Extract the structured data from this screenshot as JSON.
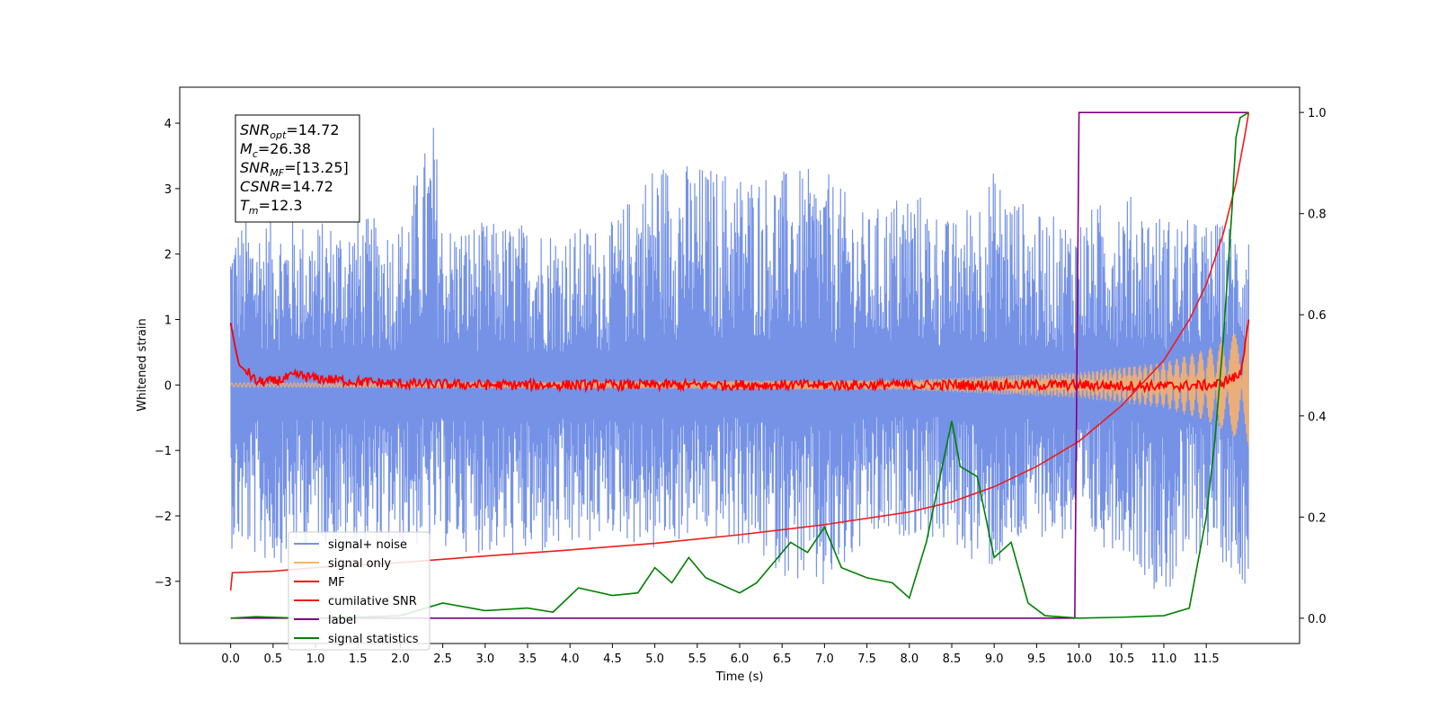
{
  "chart_data": {
    "type": "line",
    "xlabel": "Time (s)",
    "ylabel": "Whitened strain",
    "xlim": [
      -0.6,
      12.6
    ],
    "ylim": [
      -3.95,
      4.55
    ],
    "y2lim": [
      -0.05,
      1.05
    ],
    "x_ticks": [
      0.0,
      0.5,
      1.0,
      1.5,
      2.0,
      2.5,
      3.0,
      3.5,
      4.0,
      4.5,
      5.0,
      5.5,
      6.0,
      6.5,
      7.0,
      7.5,
      8.0,
      8.5,
      9.0,
      9.5,
      10.0,
      10.5,
      11.0,
      11.5
    ],
    "x_tick_labels": [
      "0.0",
      "0.5",
      "1.0",
      "1.5",
      "2.0",
      "2.5",
      "3.0",
      "3.5",
      "4.0",
      "4.5",
      "5.0",
      "5.5",
      "6.0",
      "6.5",
      "7.0",
      "7.5",
      "8.0",
      "8.5",
      "9.0",
      "9.5",
      "10.0",
      "10.5",
      "11.0",
      "11.5"
    ],
    "y_ticks": [
      -3,
      -2,
      -1,
      0,
      1,
      2,
      3,
      4
    ],
    "y_tick_labels": [
      "−3",
      "−2",
      "−1",
      "0",
      "1",
      "2",
      "3",
      "4"
    ],
    "y2_ticks": [
      0.0,
      0.2,
      0.4,
      0.6,
      0.8,
      1.0
    ],
    "y2_tick_labels": [
      "0.0",
      "0.2",
      "0.4",
      "0.6",
      "0.8",
      "1.0"
    ],
    "grid": false,
    "legend_position": "lower-left",
    "info_box": {
      "lines": [
        {
          "sym": "SNR",
          "sub": "opt",
          "value": "=14.72"
        },
        {
          "sym": "M",
          "sub": "c",
          "value": "=26.38"
        },
        {
          "sym": "SNR",
          "sub": "MF",
          "value": "=[13.25]"
        },
        {
          "sym": "CSNR",
          "sub": "",
          "value": "=14.72"
        },
        {
          "sym": "T",
          "sub": "m",
          "value": "=12.3"
        }
      ]
    },
    "series": [
      {
        "name": "signal+ noise",
        "color": "#7592e6",
        "axis": "left",
        "envelope_max": [
          [
            0.0,
            2.5
          ],
          [
            0.5,
            2.6
          ],
          [
            1.0,
            2.5
          ],
          [
            1.5,
            2.6
          ],
          [
            2.0,
            2.5
          ],
          [
            2.4,
            4.1
          ],
          [
            2.5,
            2.5
          ],
          [
            3.0,
            2.5
          ],
          [
            3.5,
            2.5
          ],
          [
            4.0,
            2.4
          ],
          [
            4.5,
            2.5
          ],
          [
            5.0,
            3.5
          ],
          [
            5.5,
            3.4
          ],
          [
            6.0,
            3.3
          ],
          [
            6.5,
            3.3
          ],
          [
            7.0,
            3.3
          ],
          [
            7.5,
            2.6
          ],
          [
            8.0,
            3.1
          ],
          [
            8.5,
            2.5
          ],
          [
            9.0,
            3.3
          ],
          [
            9.5,
            2.6
          ],
          [
            10.0,
            2.6
          ],
          [
            10.5,
            3.0
          ],
          [
            11.0,
            2.6
          ],
          [
            11.5,
            2.5
          ],
          [
            12.0,
            2.5
          ]
        ],
        "envelope_min": [
          [
            0.0,
            -2.5
          ],
          [
            0.5,
            -2.8
          ],
          [
            1.0,
            -2.4
          ],
          [
            1.5,
            -2.6
          ],
          [
            2.0,
            -2.5
          ],
          [
            2.5,
            -2.5
          ],
          [
            3.0,
            -2.6
          ],
          [
            3.5,
            -2.7
          ],
          [
            4.0,
            -2.6
          ],
          [
            4.5,
            -2.3
          ],
          [
            5.0,
            -2.6
          ],
          [
            5.5,
            -2.3
          ],
          [
            6.0,
            -2.5
          ],
          [
            6.5,
            -2.9
          ],
          [
            7.0,
            -3.3
          ],
          [
            7.5,
            -2.5
          ],
          [
            8.0,
            -2.3
          ],
          [
            8.5,
            -2.5
          ],
          [
            9.0,
            -2.9
          ],
          [
            9.5,
            -2.3
          ],
          [
            10.0,
            -2.5
          ],
          [
            10.5,
            -2.5
          ],
          [
            11.0,
            -3.3
          ],
          [
            11.5,
            -2.5
          ],
          [
            12.0,
            -3.1
          ]
        ]
      },
      {
        "name": "signal only",
        "color": "#ffb366",
        "axis": "left",
        "amplitude": [
          [
            0.0,
            0.03
          ],
          [
            4.0,
            0.05
          ],
          [
            8.0,
            0.08
          ],
          [
            10.0,
            0.2
          ],
          [
            11.0,
            0.35
          ],
          [
            11.5,
            0.55
          ],
          [
            11.8,
            0.75
          ],
          [
            12.0,
            1.0
          ]
        ]
      },
      {
        "name": "MF",
        "color": "#ff0000",
        "axis": "left",
        "points": [
          [
            0.0,
            0.95
          ],
          [
            0.05,
            0.6
          ],
          [
            0.1,
            0.3
          ],
          [
            0.2,
            0.2
          ],
          [
            0.3,
            0.05
          ],
          [
            0.5,
            0.05
          ],
          [
            0.8,
            0.15
          ],
          [
            1.0,
            0.1
          ],
          [
            1.5,
            0.05
          ],
          [
            2.0,
            0.02
          ],
          [
            3.0,
            0.0
          ],
          [
            4.0,
            0.0
          ],
          [
            5.0,
            0.0
          ],
          [
            6.0,
            0.0
          ],
          [
            7.0,
            0.0
          ],
          [
            8.0,
            0.0
          ],
          [
            9.0,
            0.0
          ],
          [
            10.0,
            0.0
          ],
          [
            11.0,
            -0.02
          ],
          [
            11.6,
            0.0
          ],
          [
            11.9,
            0.15
          ],
          [
            12.0,
            1.0
          ]
        ]
      },
      {
        "name": "cumilative SNR",
        "color": "#ee1c1c",
        "axis": "right",
        "points": [
          [
            0.0,
            0.055
          ],
          [
            0.02,
            0.09
          ],
          [
            0.5,
            0.093
          ],
          [
            1.0,
            0.1
          ],
          [
            2.0,
            0.11
          ],
          [
            3.0,
            0.123
          ],
          [
            4.0,
            0.135
          ],
          [
            5.0,
            0.148
          ],
          [
            6.0,
            0.165
          ],
          [
            7.0,
            0.185
          ],
          [
            8.0,
            0.21
          ],
          [
            8.5,
            0.23
          ],
          [
            9.0,
            0.26
          ],
          [
            9.5,
            0.3
          ],
          [
            10.0,
            0.35
          ],
          [
            10.5,
            0.42
          ],
          [
            11.0,
            0.51
          ],
          [
            11.3,
            0.59
          ],
          [
            11.5,
            0.66
          ],
          [
            11.7,
            0.76
          ],
          [
            11.85,
            0.86
          ],
          [
            11.95,
            0.95
          ],
          [
            12.0,
            1.0
          ]
        ]
      },
      {
        "name": "label",
        "color": "#800080",
        "axis": "right",
        "points": [
          [
            0.0,
            0.0
          ],
          [
            9.95,
            0.0
          ],
          [
            10.0,
            1.0
          ],
          [
            12.0,
            1.0
          ]
        ]
      },
      {
        "name": "signal statistics",
        "color": "#008000",
        "axis": "right",
        "points": [
          [
            0.0,
            0.0
          ],
          [
            0.3,
            0.003
          ],
          [
            0.8,
            0.0
          ],
          [
            1.5,
            0.002
          ],
          [
            2.0,
            0.005
          ],
          [
            2.5,
            0.03
          ],
          [
            3.0,
            0.015
          ],
          [
            3.5,
            0.02
          ],
          [
            3.8,
            0.012
          ],
          [
            4.1,
            0.06
          ],
          [
            4.5,
            0.045
          ],
          [
            4.8,
            0.05
          ],
          [
            5.0,
            0.1
          ],
          [
            5.2,
            0.07
          ],
          [
            5.4,
            0.12
          ],
          [
            5.6,
            0.08
          ],
          [
            5.8,
            0.065
          ],
          [
            6.0,
            0.05
          ],
          [
            6.2,
            0.07
          ],
          [
            6.4,
            0.11
          ],
          [
            6.6,
            0.15
          ],
          [
            6.8,
            0.13
          ],
          [
            7.0,
            0.18
          ],
          [
            7.2,
            0.1
          ],
          [
            7.5,
            0.08
          ],
          [
            7.8,
            0.07
          ],
          [
            8.0,
            0.04
          ],
          [
            8.2,
            0.15
          ],
          [
            8.5,
            0.39
          ],
          [
            8.6,
            0.3
          ],
          [
            8.8,
            0.28
          ],
          [
            9.0,
            0.12
          ],
          [
            9.2,
            0.15
          ],
          [
            9.4,
            0.03
          ],
          [
            9.6,
            0.005
          ],
          [
            10.0,
            0.0
          ],
          [
            10.5,
            0.002
          ],
          [
            11.0,
            0.005
          ],
          [
            11.3,
            0.02
          ],
          [
            11.5,
            0.2
          ],
          [
            11.6,
            0.35
          ],
          [
            11.7,
            0.55
          ],
          [
            11.8,
            0.8
          ],
          [
            11.85,
            0.95
          ],
          [
            11.9,
            0.99
          ],
          [
            12.0,
            1.0
          ]
        ]
      }
    ]
  }
}
